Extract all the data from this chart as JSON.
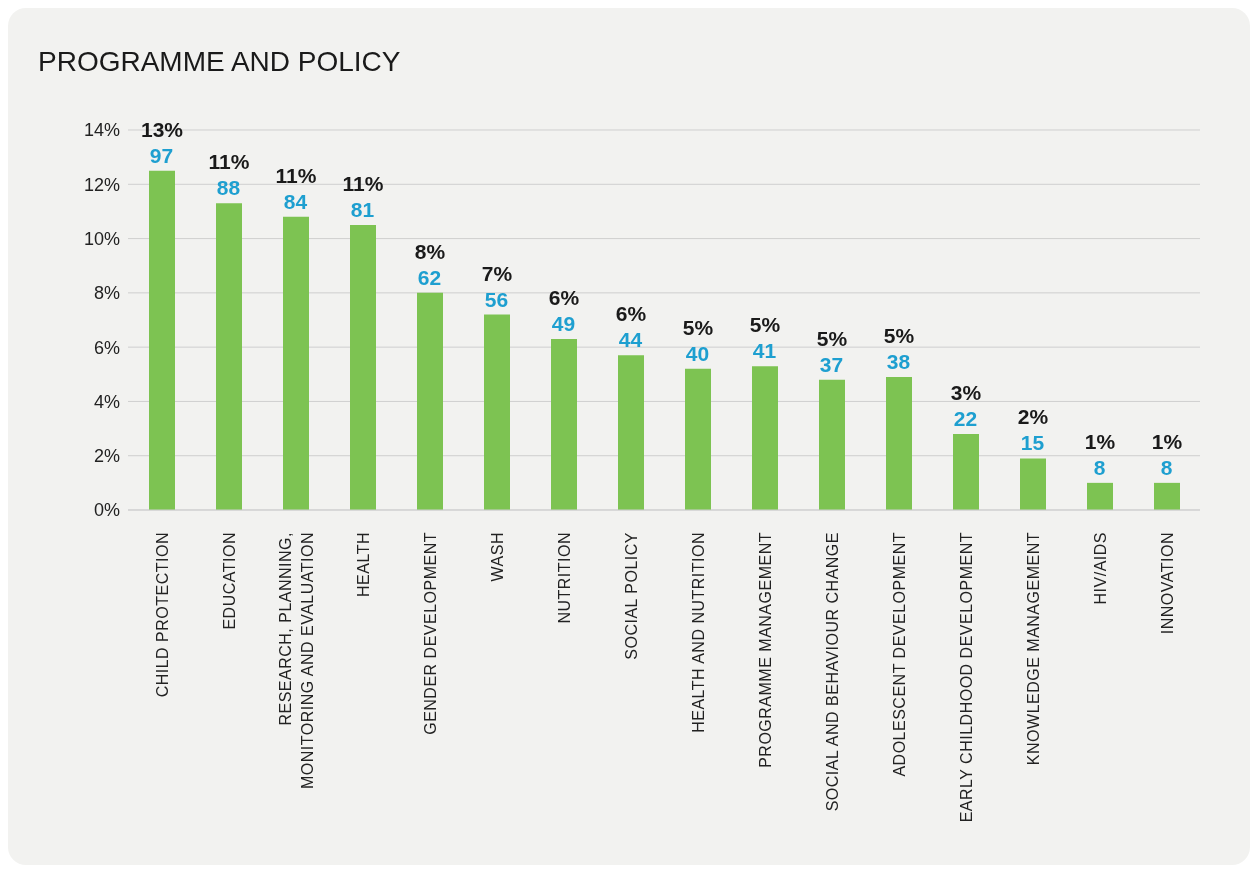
{
  "chart_data": {
    "type": "bar",
    "title": "PROGRAMME AND POLICY",
    "categories": [
      "CHILD PROTECTION",
      "EDUCATION",
      "RESEARCH, PLANNING, MONITORING AND EVALUATION",
      "HEALTH",
      "GENDER DEVELOPMENT",
      "WASH",
      "NUTRITION",
      "SOCIAL POLICY",
      "HEALTH AND NUTRITION",
      "PROGRAMME MANAGEMENT",
      "SOCIAL AND BEHAVIOUR CHANGE",
      "ADOLESCENT DEVELOPMENT",
      "EARLY CHILDHOOD DEVELOPMENT",
      "KNOWLEDGE MANAGEMENT",
      "HIV/AIDS",
      "INNOVATION"
    ],
    "values": [
      12.5,
      11.3,
      10.8,
      10.5,
      8.0,
      7.2,
      6.3,
      5.7,
      5.2,
      5.3,
      4.8,
      4.9,
      2.8,
      1.9,
      1.0,
      1.0
    ],
    "value_labels": [
      "13%",
      "11%",
      "11%",
      "11%",
      "8%",
      "7%",
      "6%",
      "6%",
      "5%",
      "5%",
      "5%",
      "5%",
      "3%",
      "2%",
      "1%",
      "1%"
    ],
    "color": "#7dc352",
    "ylim": [
      0,
      14
    ],
    "yticks": [
      {
        "value": 0,
        "label": "0%"
      },
      {
        "value": 2,
        "label": "2%"
      },
      {
        "value": 4,
        "label": "4%"
      },
      {
        "value": 6,
        "label": "6%"
      },
      {
        "value": 8,
        "label": "8%"
      },
      {
        "value": 10,
        "label": "10%"
      },
      {
        "value": 12,
        "label": "12%"
      },
      {
        "value": 14,
        "label": "14%"
      }
    ],
    "grid": "y",
    "annotations": [
      {
        "text": "97",
        "x": "CHILD PROTECTION",
        "y": 12.5
      },
      {
        "text": "88",
        "x": "EDUCATION",
        "y": 11.3
      },
      {
        "text": "84",
        "x": "RESEARCH, PLANNING, MONITORING AND EVALUATION",
        "y": 10.8
      },
      {
        "text": "81",
        "x": "HEALTH",
        "y": 10.5
      },
      {
        "text": "62",
        "x": "GENDER DEVELOPMENT",
        "y": 8.0
      },
      {
        "text": "56",
        "x": "WASH",
        "y": 7.2
      },
      {
        "text": "49",
        "x": "NUTRITION",
        "y": 6.3
      },
      {
        "text": "44",
        "x": "SOCIAL POLICY",
        "y": 5.7
      },
      {
        "text": "40",
        "x": "HEALTH AND NUTRITION",
        "y": 5.2
      },
      {
        "text": "41",
        "x": "PROGRAMME MANAGEMENT",
        "y": 5.3
      },
      {
        "text": "37",
        "x": "SOCIAL AND BEHAVIOUR CHANGE",
        "y": 4.8
      },
      {
        "text": "38",
        "x": "ADOLESCENT DEVELOPMENT",
        "y": 4.9
      },
      {
        "text": "22",
        "x": "EARLY CHILDHOOD DEVELOPMENT",
        "y": 2.8
      },
      {
        "text": "15",
        "x": "KNOWLEDGE MANAGEMENT",
        "y": 1.9
      },
      {
        "text": "8",
        "x": "HIV/AIDS",
        "y": 1.0
      },
      {
        "text": "8",
        "x": "INNOVATION",
        "y": 1.0
      }
    ]
  }
}
